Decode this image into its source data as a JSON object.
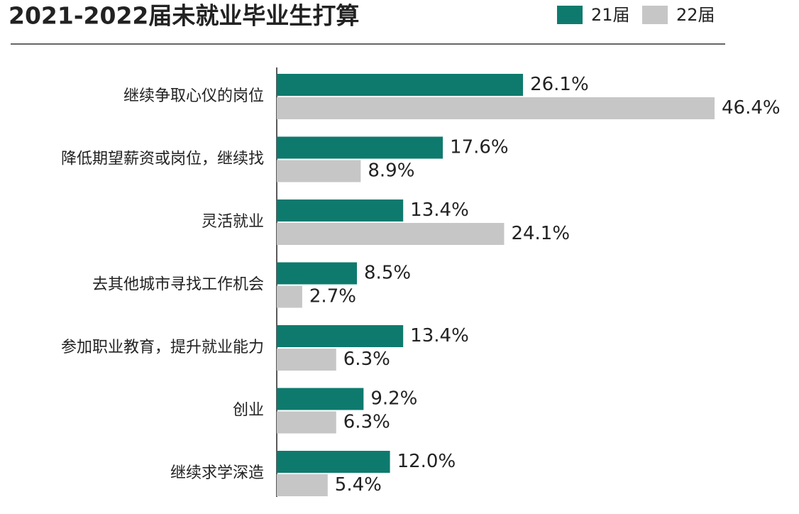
{
  "chart_data": {
    "type": "hbar",
    "title": "2021-2022届未就业毕业生打算",
    "categories": [
      "继续争取心仪的岗位",
      "降低期望薪资或岗位，继续找",
      "灵活就业",
      "去其他城市寻找工作机会",
      "参加职业教育，提升就业能力",
      "创业",
      "继续求学深造"
    ],
    "series": [
      {
        "name": "21届",
        "color": "#0e7a6e",
        "values": [
          26.1,
          17.6,
          13.4,
          8.5,
          13.4,
          9.2,
          12.0
        ],
        "value_labels": [
          "26.1%",
          "17.6%",
          "13.4%",
          "8.5%",
          "13.4%",
          "9.2%",
          "12.0%"
        ]
      },
      {
        "name": "22届",
        "color": "#c6c6c6",
        "values": [
          46.4,
          8.9,
          24.1,
          2.7,
          6.3,
          6.3,
          5.4
        ],
        "value_labels": [
          "46.4%",
          "8.9%",
          "24.1%",
          "2.7%",
          "6.3%",
          "6.3%",
          "5.4%"
        ]
      }
    ],
    "legend": "top-right"
  }
}
